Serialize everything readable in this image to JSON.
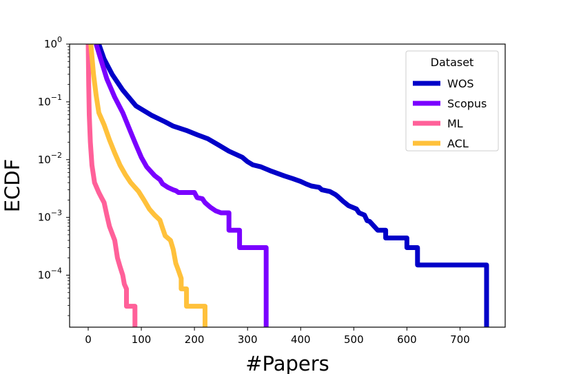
{
  "chart_data": {
    "type": "line",
    "title": "",
    "xlabel": "#Papers",
    "ylabel": "ECDF",
    "xlim": [
      -35,
      785
    ],
    "ylim_log10": [
      -4.9,
      0
    ],
    "yscale": "log",
    "grid": false,
    "x_ticks": [
      0,
      100,
      200,
      300,
      400,
      500,
      600,
      700
    ],
    "y_ticks": [
      {
        "exp": 0,
        "base": "10",
        "power": "0"
      },
      {
        "exp": -1,
        "base": "10",
        "power": "−1"
      },
      {
        "exp": -2,
        "base": "10",
        "power": "−2"
      },
      {
        "exp": -3,
        "base": "10",
        "power": "−3"
      },
      {
        "exp": -4,
        "base": "10",
        "power": "−4"
      }
    ],
    "legend": {
      "title": "Dataset",
      "position": "top-right"
    },
    "series": [
      {
        "name": "WOS",
        "color": "#0000c8",
        "points": [
          [
            20,
            1.0
          ],
          [
            30,
            0.55
          ],
          [
            45,
            0.3
          ],
          [
            65,
            0.16
          ],
          [
            90,
            0.085
          ],
          [
            120,
            0.058
          ],
          [
            145,
            0.045
          ],
          [
            160,
            0.038
          ],
          [
            185,
            0.032
          ],
          [
            205,
            0.027
          ],
          [
            225,
            0.023
          ],
          [
            245,
            0.018
          ],
          [
            265,
            0.014
          ],
          [
            290,
            0.011
          ],
          [
            300,
            0.0092
          ],
          [
            310,
            0.0081
          ],
          [
            325,
            0.0075
          ],
          [
            345,
            0.0063
          ],
          [
            370,
            0.0052
          ],
          [
            385,
            0.0047
          ],
          [
            400,
            0.0042
          ],
          [
            410,
            0.0038
          ],
          [
            420,
            0.0035
          ],
          [
            435,
            0.0033
          ],
          [
            440,
            0.003
          ],
          [
            455,
            0.0028
          ],
          [
            465,
            0.0025
          ],
          [
            470,
            0.0023
          ],
          [
            480,
            0.0019
          ],
          [
            490,
            0.0016
          ],
          [
            505,
            0.0014
          ],
          [
            510,
            0.0012
          ],
          [
            520,
            0.0011
          ],
          [
            525,
            0.00088
          ],
          [
            530,
            0.00085
          ],
          [
            545,
            0.0006
          ],
          [
            560,
            0.0006
          ],
          [
            560,
            0.00044
          ],
          [
            600,
            0.00044
          ],
          [
            600,
            0.0003
          ],
          [
            620,
            0.0003
          ],
          [
            620,
            0.00015
          ],
          [
            750,
            0.00015
          ],
          [
            750,
            1.25e-05
          ]
        ]
      },
      {
        "name": "Scopus",
        "color": "#7a00ff",
        "points": [
          [
            15,
            1.0
          ],
          [
            25,
            0.5
          ],
          [
            35,
            0.25
          ],
          [
            50,
            0.12
          ],
          [
            65,
            0.065
          ],
          [
            80,
            0.03
          ],
          [
            90,
            0.018
          ],
          [
            100,
            0.011
          ],
          [
            110,
            0.0075
          ],
          [
            125,
            0.0053
          ],
          [
            135,
            0.0045
          ],
          [
            140,
            0.0038
          ],
          [
            150,
            0.0033
          ],
          [
            160,
            0.003
          ],
          [
            165,
            0.0029
          ],
          [
            170,
            0.0027
          ],
          [
            200,
            0.0027
          ],
          [
            205,
            0.0022
          ],
          [
            215,
            0.0021
          ],
          [
            220,
            0.0018
          ],
          [
            230,
            0.0015
          ],
          [
            240,
            0.0013
          ],
          [
            250,
            0.0012
          ],
          [
            265,
            0.0012
          ],
          [
            265,
            0.0006
          ],
          [
            285,
            0.0006
          ],
          [
            285,
            0.0003
          ],
          [
            335,
            0.0003
          ],
          [
            335,
            1.25e-05
          ]
        ]
      },
      {
        "name": "ML",
        "color": "#ff6099",
        "points": [
          [
            0,
            1.0
          ],
          [
            1,
            0.2
          ],
          [
            2,
            0.06
          ],
          [
            4,
            0.02
          ],
          [
            7,
            0.008
          ],
          [
            12,
            0.004
          ],
          [
            20,
            0.0027
          ],
          [
            25,
            0.0022
          ],
          [
            30,
            0.0018
          ],
          [
            35,
            0.0011
          ],
          [
            40,
            0.0007
          ],
          [
            50,
            0.0004
          ],
          [
            55,
            0.0002
          ],
          [
            60,
            0.00014
          ],
          [
            65,
            0.0001
          ],
          [
            68,
            7e-05
          ],
          [
            72,
            5.8e-05
          ],
          [
            72,
            2.9e-05
          ],
          [
            88,
            2.9e-05
          ],
          [
            88,
            1.25e-05
          ]
        ]
      },
      {
        "name": "ACL",
        "color": "#ffc13b",
        "points": [
          [
            5,
            1.0
          ],
          [
            10,
            0.3
          ],
          [
            15,
            0.13
          ],
          [
            20,
            0.065
          ],
          [
            30,
            0.04
          ],
          [
            40,
            0.022
          ],
          [
            50,
            0.013
          ],
          [
            60,
            0.008
          ],
          [
            70,
            0.0055
          ],
          [
            80,
            0.004
          ],
          [
            95,
            0.0028
          ],
          [
            105,
            0.002
          ],
          [
            115,
            0.0014
          ],
          [
            125,
            0.0011
          ],
          [
            135,
            0.0009
          ],
          [
            140,
            0.00065
          ],
          [
            145,
            0.00048
          ],
          [
            155,
            0.0004
          ],
          [
            160,
            0.00028
          ],
          [
            165,
            0.00016
          ],
          [
            170,
            0.00012
          ],
          [
            175,
            8.8e-05
          ],
          [
            175,
            5.8e-05
          ],
          [
            185,
            5.8e-05
          ],
          [
            185,
            2.9e-05
          ],
          [
            220,
            2.9e-05
          ],
          [
            220,
            1.25e-05
          ]
        ]
      }
    ]
  }
}
